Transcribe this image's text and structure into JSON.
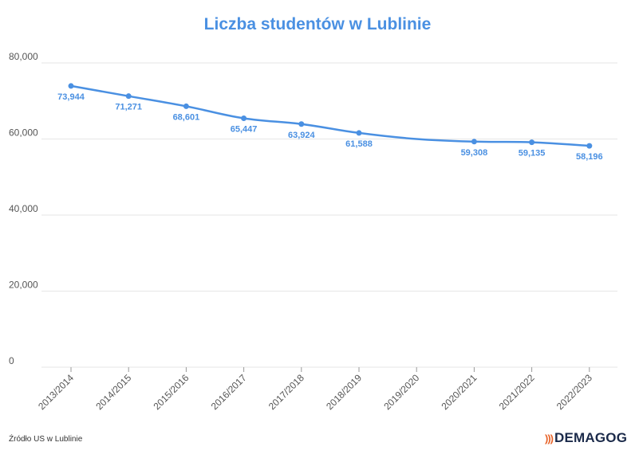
{
  "chart_data": {
    "type": "line",
    "title": "Liczba studentów w Lublinie",
    "xlabel": "",
    "ylabel": "",
    "categories": [
      "2013/2014",
      "2014/2015",
      "2015/2016",
      "2016/2017",
      "2017/2018",
      "2018/2019",
      "2019/2020",
      "2020/2021",
      "2021/2022",
      "2022/2023"
    ],
    "series": [
      {
        "values": [
          73944,
          71271,
          68601,
          65447,
          63924,
          61588,
          60000,
          59308,
          59135,
          58196
        ],
        "labels": [
          "73,944",
          "71,271",
          "68,601",
          "65,447",
          "63,924",
          "61,588",
          "",
          "59,308",
          "59,135",
          "58,196"
        ],
        "color": "#4a90e2"
      }
    ],
    "ylim": [
      0,
      80000
    ],
    "yticks": [
      0,
      20000,
      40000,
      60000,
      80000
    ],
    "ytick_labels": [
      "0",
      "20,000",
      "40,000",
      "60,000",
      "80,000"
    ],
    "grid": true,
    "legend": "none"
  },
  "footer": {
    "source": "Źródło US w Lublinie",
    "logo": "DEMAGOG"
  },
  "colors": {
    "accent": "#4a90e2",
    "grid": "#e6e6e6",
    "logo_mark": "#e8642a",
    "logo_text": "#1b2a4a"
  }
}
